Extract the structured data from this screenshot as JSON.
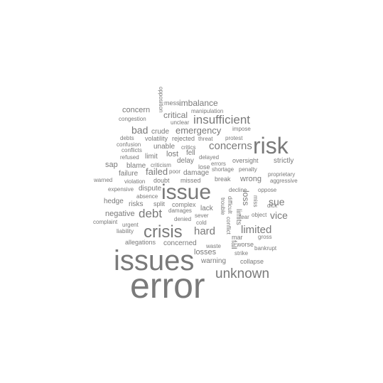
{
  "cloud": {
    "text_color": "#7a7a7a",
    "background": "#ffffff",
    "words": [
      {
        "text": "error"
      },
      {
        "text": "issues"
      },
      {
        "text": "issue"
      },
      {
        "text": "risk"
      },
      {
        "text": "crisis"
      },
      {
        "text": "unknown"
      },
      {
        "text": "insufficient"
      },
      {
        "text": "concerns"
      },
      {
        "text": "debt"
      },
      {
        "text": "hard"
      },
      {
        "text": "limited"
      },
      {
        "text": "vice"
      },
      {
        "text": "sue"
      },
      {
        "text": "failed"
      },
      {
        "text": "emergency"
      },
      {
        "text": "bad"
      },
      {
        "text": "imbalance"
      },
      {
        "text": "critical"
      },
      {
        "text": "concern"
      },
      {
        "text": "negative"
      },
      {
        "text": "wrong"
      },
      {
        "text": "losses"
      },
      {
        "text": "concerned"
      },
      {
        "text": "warning"
      },
      {
        "text": "crude"
      },
      {
        "text": "unable"
      },
      {
        "text": "lost"
      },
      {
        "text": "limit"
      },
      {
        "text": "blame"
      },
      {
        "text": "sap"
      },
      {
        "text": "failure"
      },
      {
        "text": "dispute"
      },
      {
        "text": "hedge"
      },
      {
        "text": "risks"
      },
      {
        "text": "split"
      },
      {
        "text": "lack"
      },
      {
        "text": "strictly"
      },
      {
        "text": "oversight"
      },
      {
        "text": "delay"
      },
      {
        "text": "damage"
      },
      {
        "text": "doubt"
      },
      {
        "text": "missed"
      },
      {
        "text": "break"
      },
      {
        "text": "complex"
      },
      {
        "text": "collapse"
      },
      {
        "text": "allegations"
      },
      {
        "text": "mess"
      },
      {
        "text": "opposition"
      },
      {
        "text": "manipulation"
      },
      {
        "text": "unclear"
      },
      {
        "text": "congestion"
      },
      {
        "text": "impose"
      },
      {
        "text": "protest"
      },
      {
        "text": "rejected"
      },
      {
        "text": "threat"
      },
      {
        "text": "volatility"
      },
      {
        "text": "debts"
      },
      {
        "text": "confusion"
      },
      {
        "text": "conflicts"
      },
      {
        "text": "critics"
      },
      {
        "text": "fell"
      },
      {
        "text": "refused"
      },
      {
        "text": "delayed"
      },
      {
        "text": "errors"
      },
      {
        "text": "criticism"
      },
      {
        "text": "lose"
      },
      {
        "text": "shortage"
      },
      {
        "text": "penalty"
      },
      {
        "text": "poor"
      },
      {
        "text": "proprietary"
      },
      {
        "text": "aggressive"
      },
      {
        "text": "warned"
      },
      {
        "text": "violation"
      },
      {
        "text": "expensive"
      },
      {
        "text": "decline"
      },
      {
        "text": "oppose"
      },
      {
        "text": "absence"
      },
      {
        "text": "damages"
      },
      {
        "text": "denied"
      },
      {
        "text": "sever"
      },
      {
        "text": "cold"
      },
      {
        "text": "complaint"
      },
      {
        "text": "urgent"
      },
      {
        "text": "liability"
      },
      {
        "text": "trouble"
      },
      {
        "text": "conflict"
      },
      {
        "text": "fall"
      },
      {
        "text": "miss"
      },
      {
        "text": "limits"
      },
      {
        "text": "loss"
      },
      {
        "text": "difficult"
      },
      {
        "text": "dick"
      },
      {
        "text": "object"
      },
      {
        "text": "fear"
      },
      {
        "text": "gross"
      },
      {
        "text": "mar"
      },
      {
        "text": "worse"
      },
      {
        "text": "bankrupt"
      },
      {
        "text": "strike"
      },
      {
        "text": "waste"
      }
    ]
  }
}
